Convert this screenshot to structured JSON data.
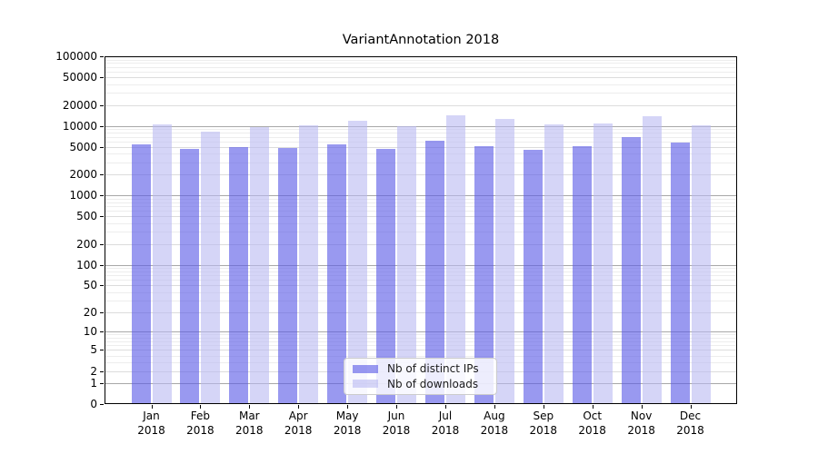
{
  "chart_data": {
    "type": "bar",
    "title": "VariantAnnotation 2018",
    "xlabel": "",
    "ylabel": "",
    "scale": "log1p",
    "grid": true,
    "legend_position": "lower center",
    "ylim": [
      0,
      100000
    ],
    "y_ticks": [
      0,
      1,
      2,
      5,
      10,
      20,
      50,
      100,
      200,
      500,
      1000,
      2000,
      5000,
      10000,
      20000,
      50000,
      100000
    ],
    "categories": [
      "Jan",
      "Feb",
      "Mar",
      "Apr",
      "May",
      "Jun",
      "Jul",
      "Aug",
      "Sep",
      "Oct",
      "Nov",
      "Dec"
    ],
    "year": "2018",
    "series": [
      {
        "name": "Nb of distinct IPs",
        "color": "#9a9aee",
        "color_rgba": "rgba(90,90,230,0.62)",
        "values": [
          5400,
          4700,
          5000,
          4800,
          5500,
          4600,
          6100,
          5100,
          4500,
          5100,
          6800,
          5800
        ]
      },
      {
        "name": "Nb of downloads",
        "color": "#dadaf7",
        "color_rgba": "rgba(185,185,242,0.60)",
        "values": [
          10500,
          8300,
          9500,
          10300,
          11800,
          9800,
          14300,
          12500,
          10600,
          10700,
          13900,
          10200
        ]
      }
    ],
    "frame_color": "#000000",
    "major_grid_color": "#a8a8a8",
    "minor_grid_color": "#ededed"
  }
}
